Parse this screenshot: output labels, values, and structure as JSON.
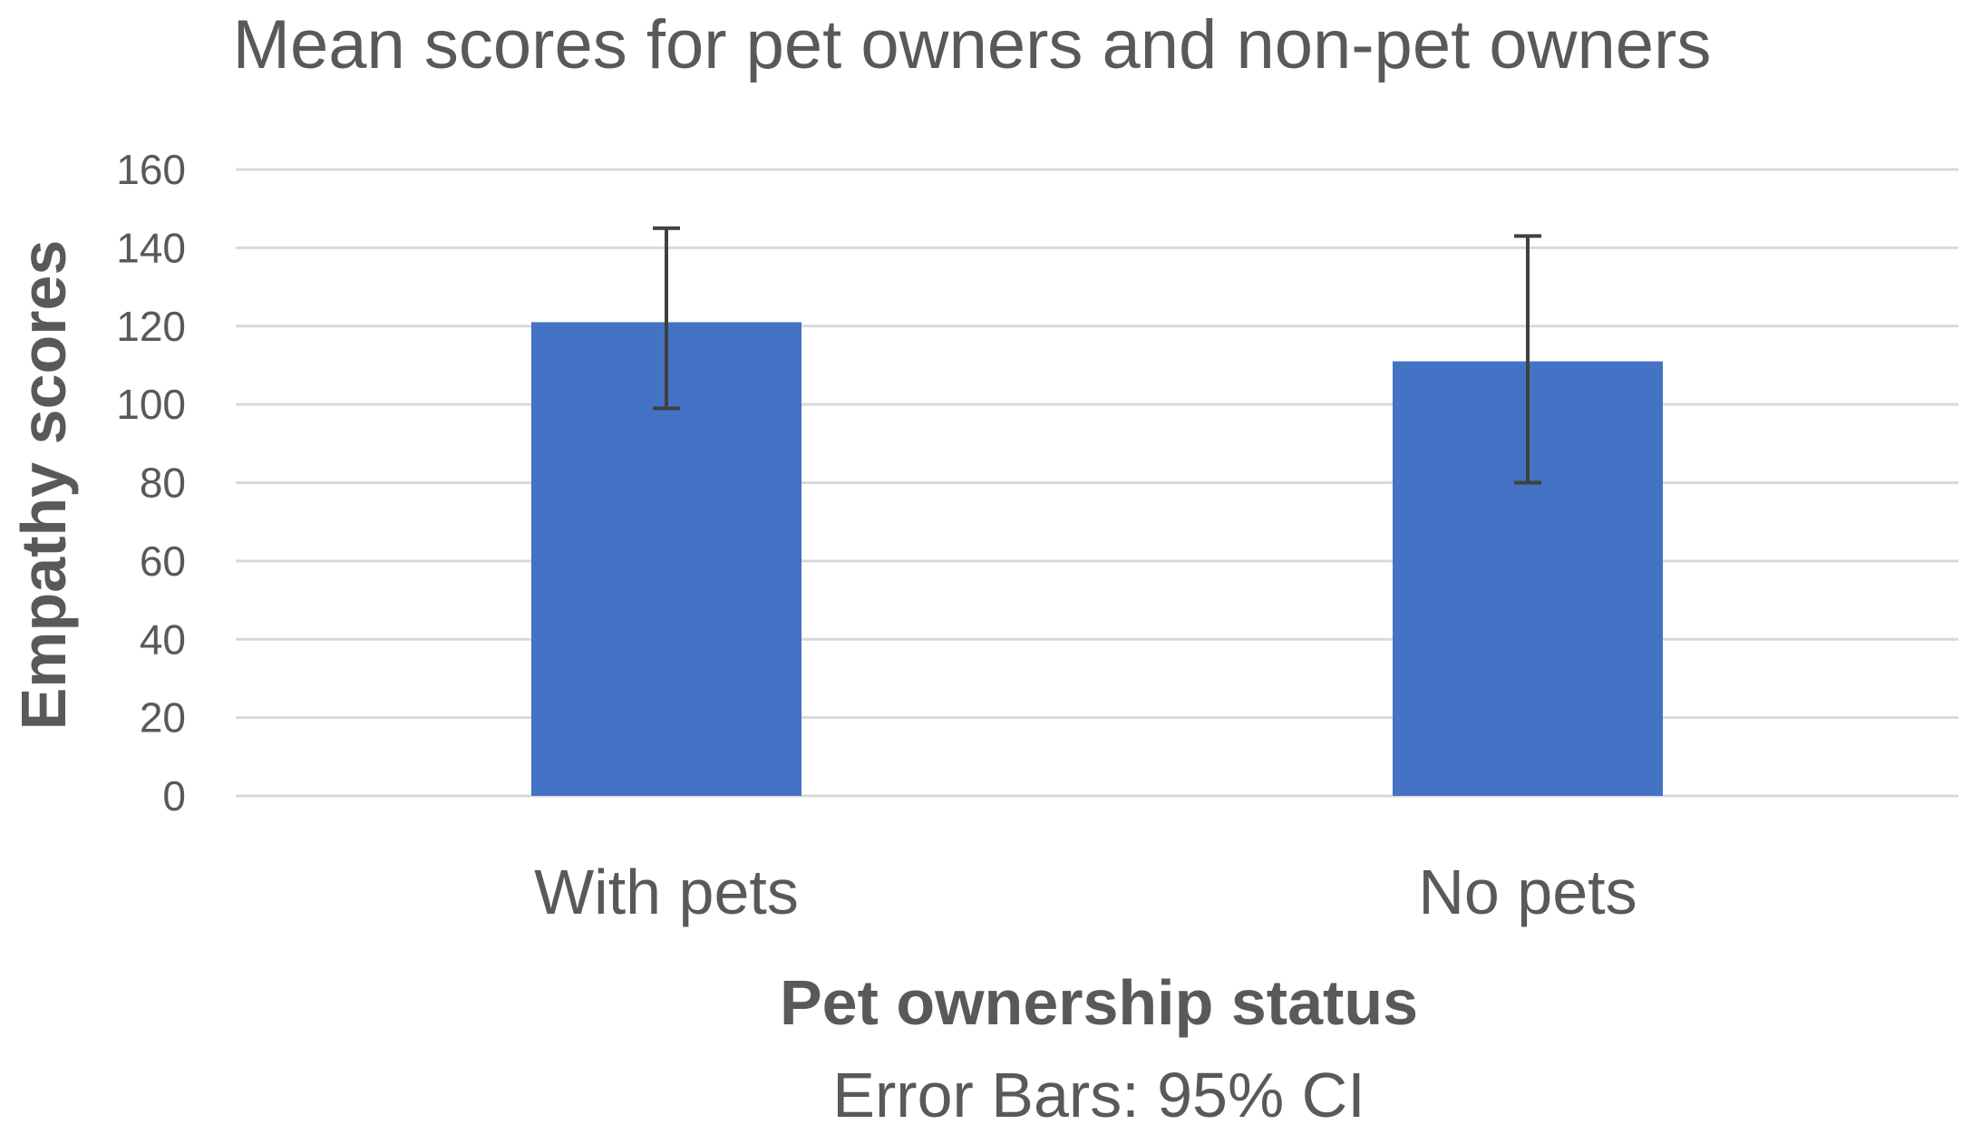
{
  "chart_data": {
    "type": "bar",
    "title": "Mean scores for pet owners and non-pet owners",
    "xlabel": "Pet ownership status",
    "ylabel": "Empathy scores",
    "caption": "Error Bars: 95% CI",
    "categories": [
      "With pets",
      "No pets"
    ],
    "values": [
      121,
      111
    ],
    "error_bars": [
      {
        "low": 99,
        "high": 145
      },
      {
        "low": 80,
        "high": 143
      }
    ],
    "ylim": [
      0,
      160
    ],
    "yticks": [
      "0",
      "20",
      "40",
      "60",
      "80",
      "100",
      "120",
      "140",
      "160"
    ],
    "grid": true,
    "legend": "none",
    "colors": {
      "bar": "#4472C4",
      "grid": "#D9D9D9",
      "error_bar": "#404040",
      "text": "#595959"
    }
  }
}
